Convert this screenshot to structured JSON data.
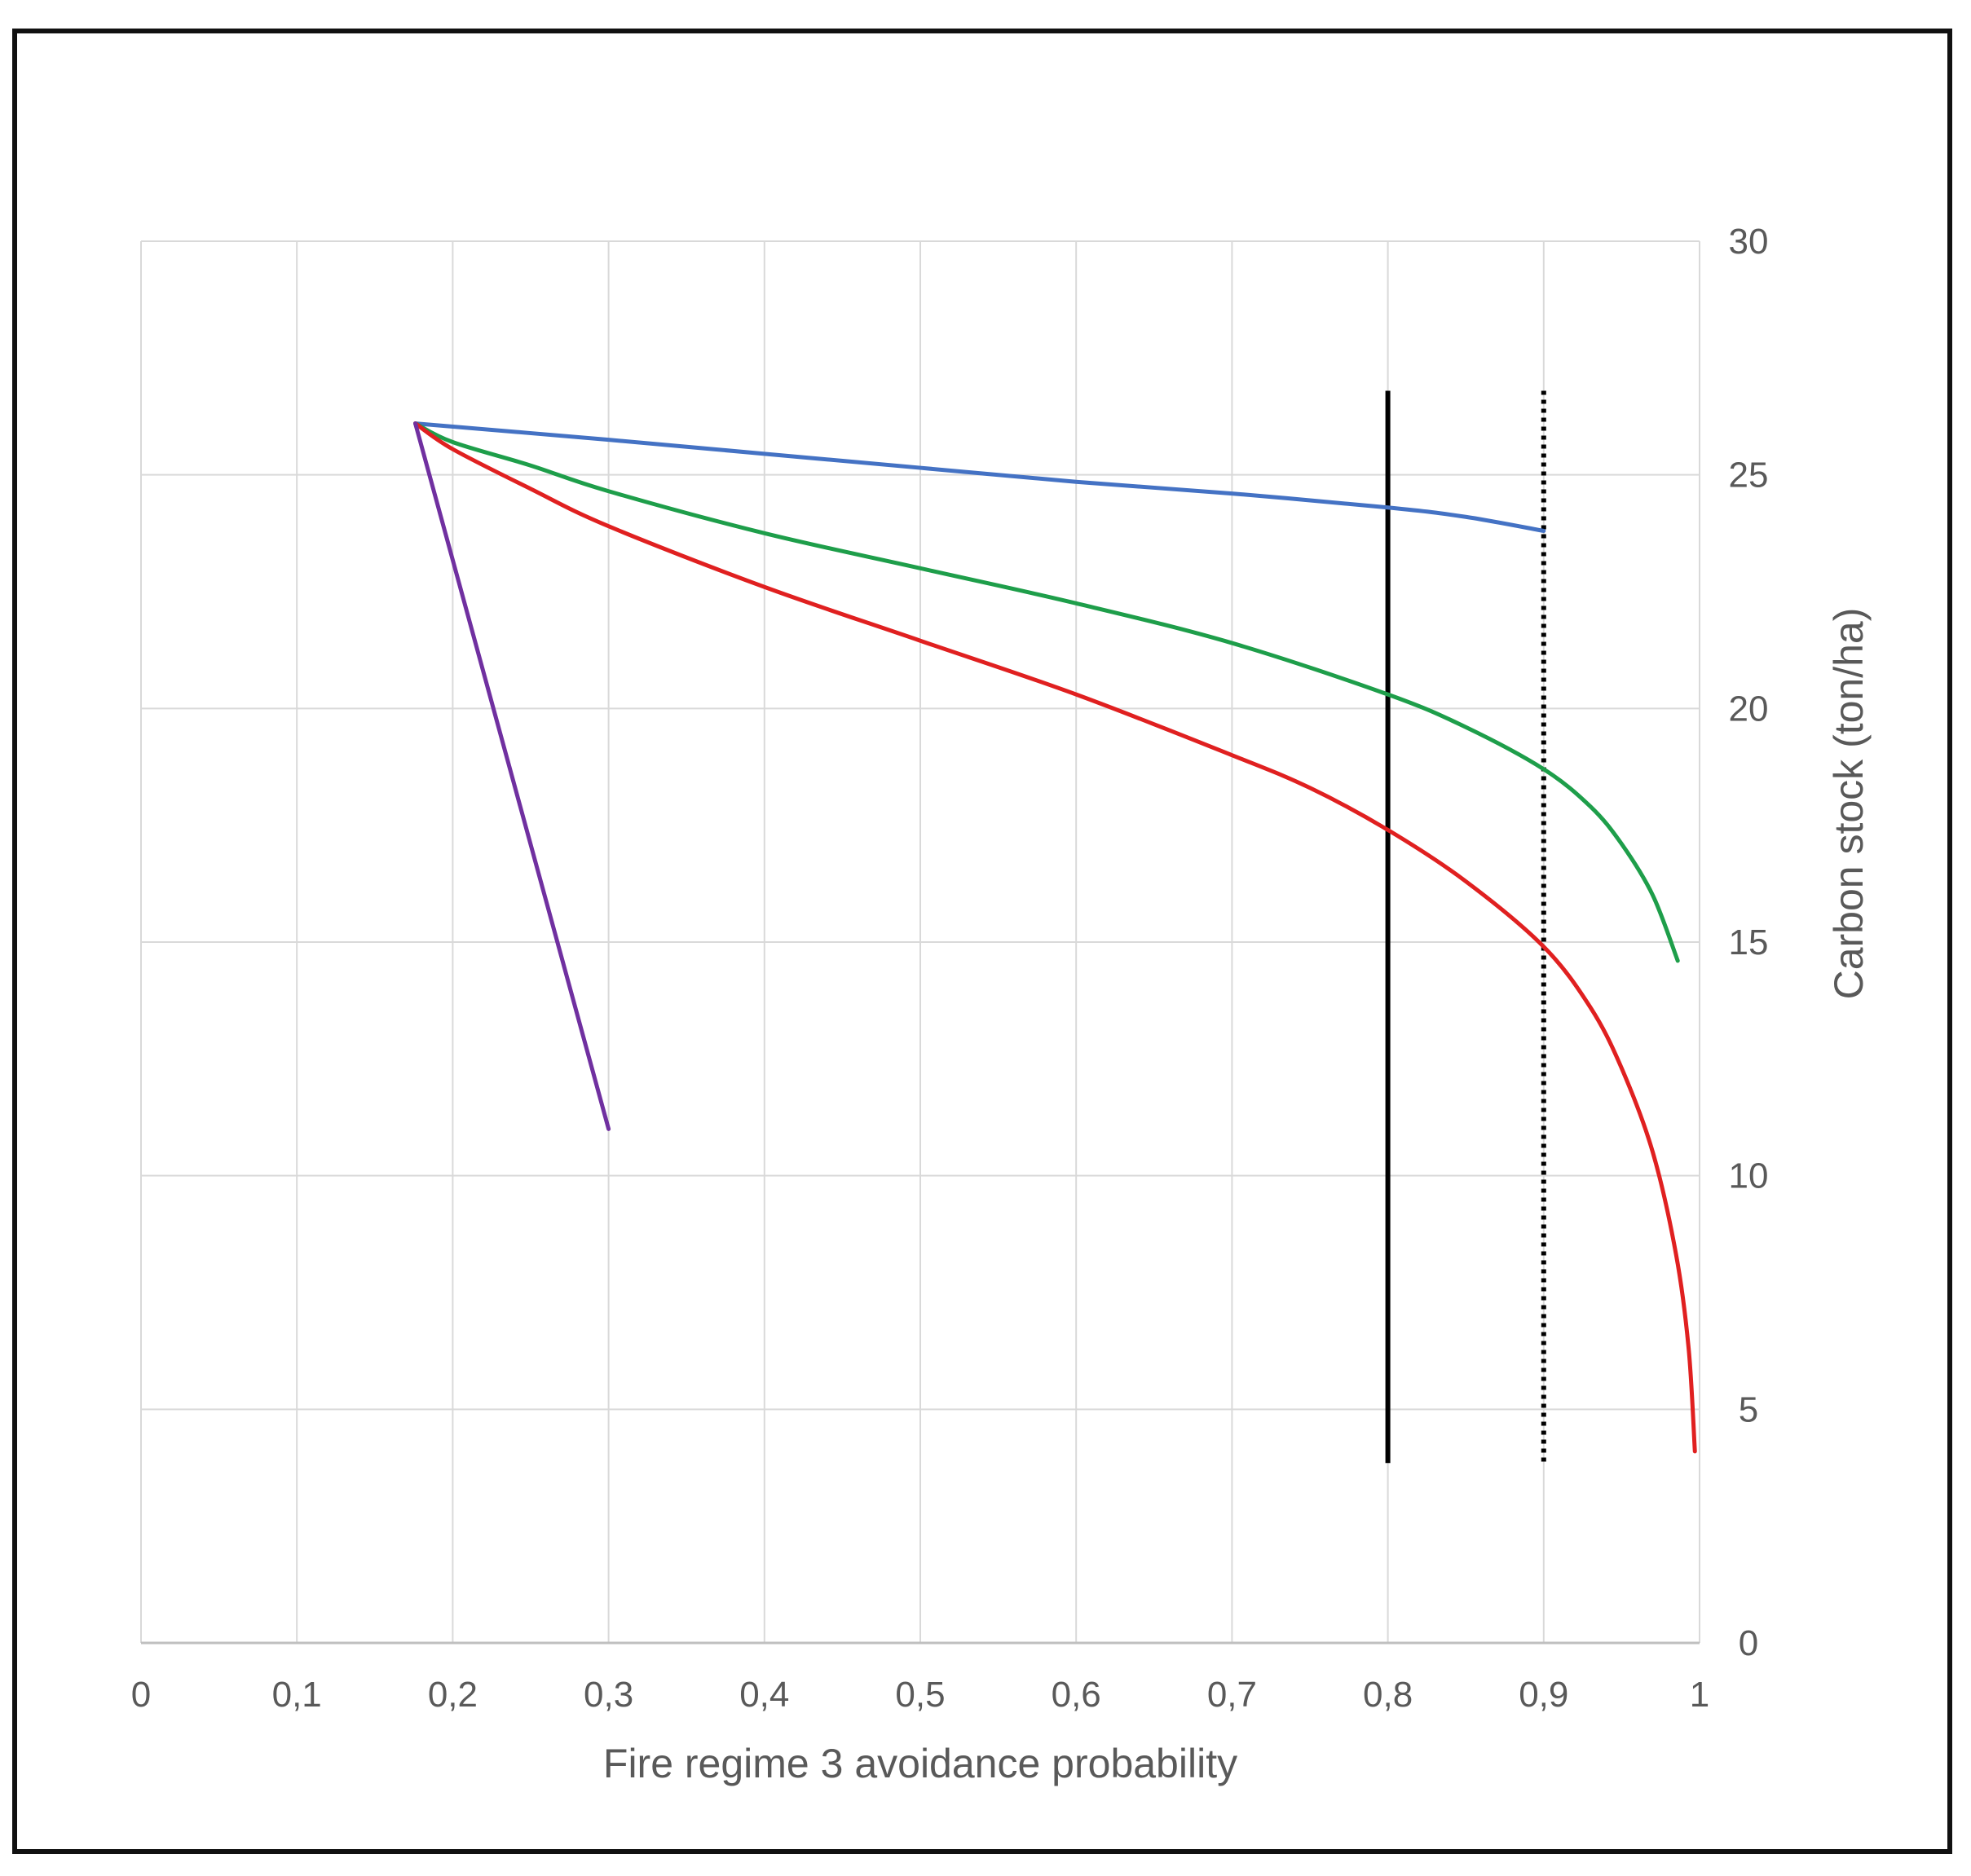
{
  "chart_data": {
    "type": "line",
    "title": "",
    "xlabel": "Fire regime 3 avoidance probability",
    "ylabel": "Carbon stock (ton/ha)",
    "xlim": [
      0,
      1
    ],
    "ylim": [
      0,
      30
    ],
    "grid": true,
    "y_axis_side": "right",
    "legend": "none",
    "x_ticks": [
      "0",
      "0,1",
      "0,2",
      "0,3",
      "0,4",
      "0,5",
      "0,6",
      "0,7",
      "0,8",
      "0,9",
      "1"
    ],
    "y_ticks": [
      "0",
      "5",
      "10",
      "15",
      "20",
      "25",
      "30"
    ],
    "series": [
      {
        "color": "#4472c4",
        "points": [
          [
            0.176,
            26.1
          ],
          [
            0.3,
            25.75
          ],
          [
            0.4,
            25.45
          ],
          [
            0.5,
            25.15
          ],
          [
            0.6,
            24.85
          ],
          [
            0.7,
            24.6
          ],
          [
            0.8,
            24.3
          ],
          [
            0.85,
            24.1
          ],
          [
            0.9,
            23.8
          ]
        ]
      },
      {
        "color": "#1e9e4a",
        "points": [
          [
            0.176,
            26.1
          ],
          [
            0.2,
            25.7
          ],
          [
            0.25,
            25.2
          ],
          [
            0.3,
            24.65
          ],
          [
            0.4,
            23.75
          ],
          [
            0.5,
            23.0
          ],
          [
            0.6,
            22.25
          ],
          [
            0.7,
            21.4
          ],
          [
            0.8,
            20.3
          ],
          [
            0.85,
            19.6
          ],
          [
            0.9,
            18.7
          ],
          [
            0.93,
            17.9
          ],
          [
            0.95,
            17.1
          ],
          [
            0.97,
            16.0
          ],
          [
            0.986,
            14.6
          ]
        ]
      },
      {
        "color": "#e02020",
        "points": [
          [
            0.176,
            26.1
          ],
          [
            0.2,
            25.55
          ],
          [
            0.25,
            24.7
          ],
          [
            0.3,
            23.9
          ],
          [
            0.4,
            22.6
          ],
          [
            0.5,
            21.45
          ],
          [
            0.6,
            20.3
          ],
          [
            0.7,
            19.0
          ],
          [
            0.75,
            18.3
          ],
          [
            0.8,
            17.4
          ],
          [
            0.85,
            16.3
          ],
          [
            0.9,
            14.9
          ],
          [
            0.93,
            13.6
          ],
          [
            0.95,
            12.3
          ],
          [
            0.97,
            10.5
          ],
          [
            0.985,
            8.3
          ],
          [
            0.993,
            6.3
          ],
          [
            0.997,
            4.1
          ]
        ]
      },
      {
        "color": "#7030a0",
        "points": [
          [
            0.176,
            26.1
          ],
          [
            0.3,
            11.0
          ]
        ]
      }
    ],
    "reference_lines": [
      {
        "x": 0.8,
        "y_from": 3.85,
        "y_to": 26.8,
        "style": "solid",
        "color": "#000000"
      },
      {
        "x": 0.9,
        "y_from": 3.85,
        "y_to": 26.8,
        "style": "dotted",
        "color": "#000000"
      }
    ]
  }
}
